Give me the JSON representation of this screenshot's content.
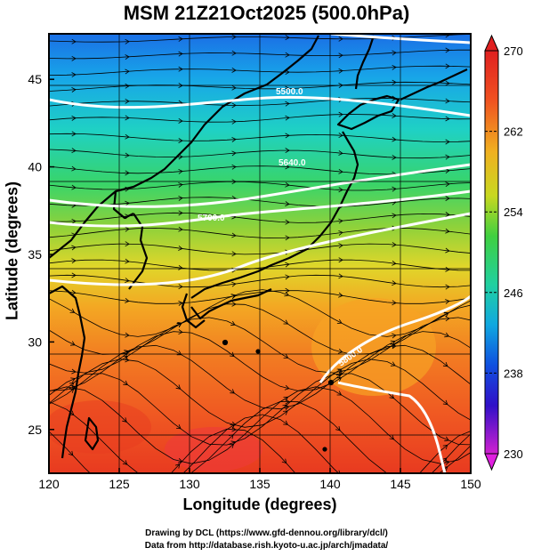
{
  "title": "MSM 21Z21Oct2025 (500.0hPa)",
  "axes": {
    "xlabel": "Longitude (degrees)",
    "ylabel": "Latitude  (degrees)",
    "x_ticks": [
      "120",
      "125",
      "130",
      "135",
      "140",
      "145",
      "150"
    ],
    "y_ticks": [
      "25",
      "30",
      "35",
      "40",
      "45"
    ]
  },
  "colorbar": {
    "ticks": [
      "270",
      "262",
      "254",
      "246",
      "238",
      "230"
    ],
    "min": 230,
    "max": 270,
    "colors": [
      "#e020e0",
      "#7010d0",
      "#1010d0",
      "#1060e0",
      "#10b0e0",
      "#20d0a0",
      "#30d040",
      "#a0d020",
      "#f0d020",
      "#f09020",
      "#f05020",
      "#e02020"
    ]
  },
  "contour_labels": [
    "5500.0",
    "5640.0",
    "5700.0",
    "5820.0",
    "5800.0"
  ],
  "credits": {
    "line1": "Drawing by DCL (https://www.gfd-dennou.org/library/dcl/)",
    "line2": "Data from http://database.rish.kyoto-u.ac.jp/arch/jmadata/"
  },
  "map_extent": {
    "lon": [
      120,
      150
    ],
    "lat": [
      22.5,
      47.6
    ]
  }
}
